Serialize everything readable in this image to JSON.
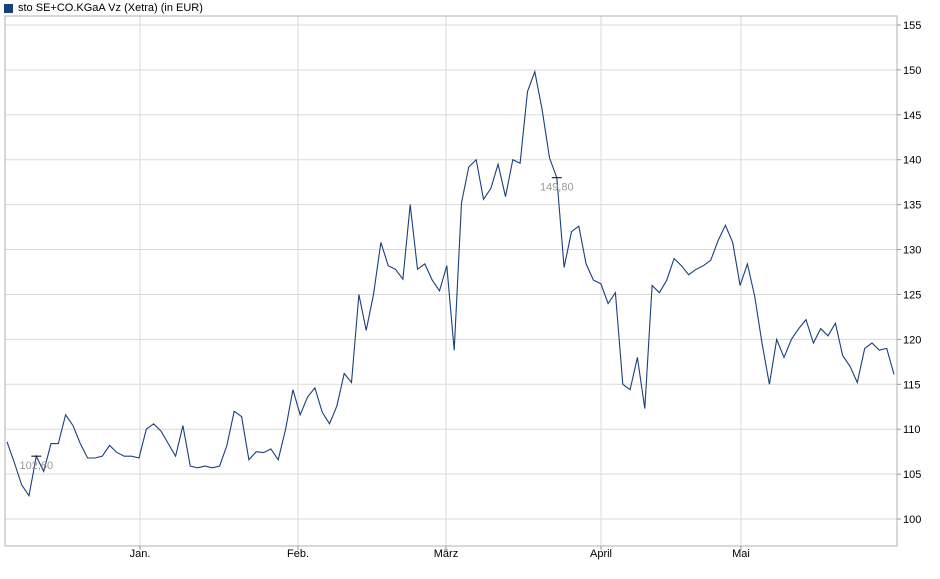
{
  "legend": {
    "label": "sto SE+CO.KGaA Vz (Xetra) (in EUR)",
    "color": "#1a3f7a"
  },
  "chart_data": {
    "type": "line",
    "title": "",
    "xlabel": "",
    "ylabel": "",
    "ylim": [
      97,
      156
    ],
    "y_ticks": [
      100,
      105,
      110,
      115,
      120,
      125,
      130,
      135,
      140,
      145,
      150,
      155
    ],
    "y_tick_labels": [
      "100",
      "105",
      "110",
      "115",
      "120",
      "125",
      "130",
      "135",
      "140",
      "145",
      "150",
      "155"
    ],
    "x_tick_labels": [
      "Jan.",
      "Feb.",
      "März",
      "April",
      "Mai"
    ],
    "grid": true,
    "line_color": "#1a3f7a",
    "annotations": [
      {
        "label": "102,60",
        "index": 4
      },
      {
        "label": "149,80",
        "index": 75
      }
    ],
    "series": [
      {
        "name": "sto SE+CO.KGaA Vz (Xetra) (in EUR)",
        "values": [
          108.6,
          106.3,
          103.8,
          102.6,
          107.0,
          105.3,
          108.4,
          108.4,
          111.6,
          110.4,
          108.4,
          106.8,
          106.8,
          107.0,
          108.2,
          107.4,
          107.0,
          107.0,
          106.8,
          110.0,
          110.6,
          109.8,
          108.4,
          107.0,
          110.4,
          105.9,
          105.7,
          105.9,
          105.7,
          105.9,
          108.2,
          112.0,
          111.4,
          106.6,
          107.5,
          107.4,
          107.8,
          106.6,
          110.0,
          114.4,
          111.6,
          113.6,
          114.6,
          111.9,
          110.6,
          112.6,
          116.2,
          115.2,
          125.0,
          121.0,
          125.0,
          130.8,
          128.2,
          127.8,
          126.7,
          135.0,
          127.8,
          128.4,
          126.6,
          125.4,
          128.2,
          118.8,
          135.2,
          139.2,
          140.0,
          135.6,
          136.8,
          139.5,
          135.9,
          140.0,
          139.6,
          147.6,
          149.8,
          145.6,
          140.2,
          138.0,
          128.0,
          132.0,
          132.6,
          128.4,
          126.6,
          126.2,
          124.0,
          125.2,
          115.0,
          114.4,
          118.0,
          112.3,
          126.0,
          125.2,
          126.6,
          129.0,
          128.2,
          127.2,
          127.8,
          128.2,
          128.8,
          131.0,
          132.7,
          130.8,
          126.0,
          128.4,
          124.8,
          119.6,
          115.0,
          120.0,
          118.0,
          120.0,
          121.2,
          122.2,
          119.6,
          121.2,
          120.4,
          121.8,
          118.2,
          117.0,
          115.2,
          119.0,
          119.6,
          118.8,
          119.0,
          116.1
        ]
      }
    ]
  }
}
